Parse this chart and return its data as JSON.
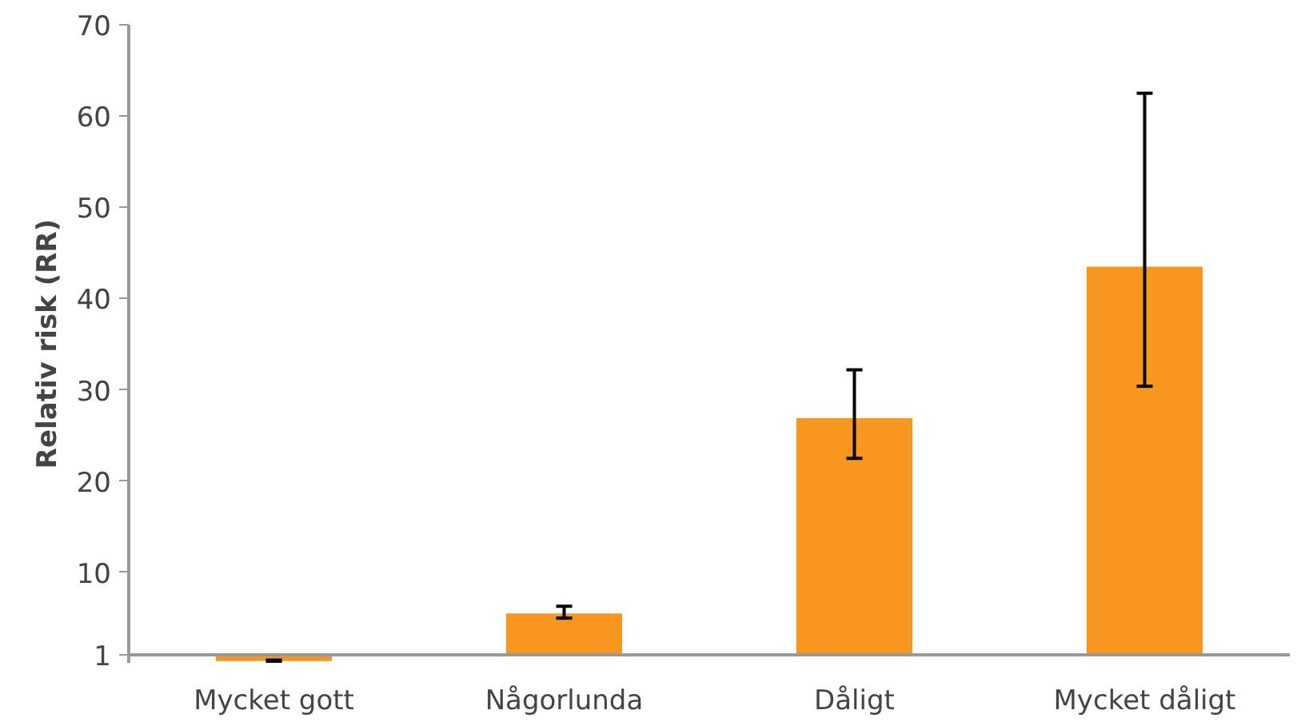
{
  "chart_data": {
    "type": "bar",
    "ylabel": "Relativ risk (RR)",
    "categories": [
      "Mycket gott",
      "Någorlunda",
      "Dåligt",
      "Mycket dåligt"
    ],
    "values": [
      -0.7,
      4.5,
      25.9,
      42.5
    ],
    "base": [
      1,
      1,
      1,
      1
    ],
    "errors": [
      [
        0.2,
        0.4
      ],
      [
        5.0,
        6.3
      ],
      [
        22.5,
        32.2
      ],
      [
        30.4,
        62.5
      ]
    ],
    "color": "#f7971e",
    "ylim": [
      0.1,
      70
    ],
    "yticks": [
      1,
      10,
      20,
      30,
      40,
      50,
      60,
      70
    ],
    "grid": false
  }
}
